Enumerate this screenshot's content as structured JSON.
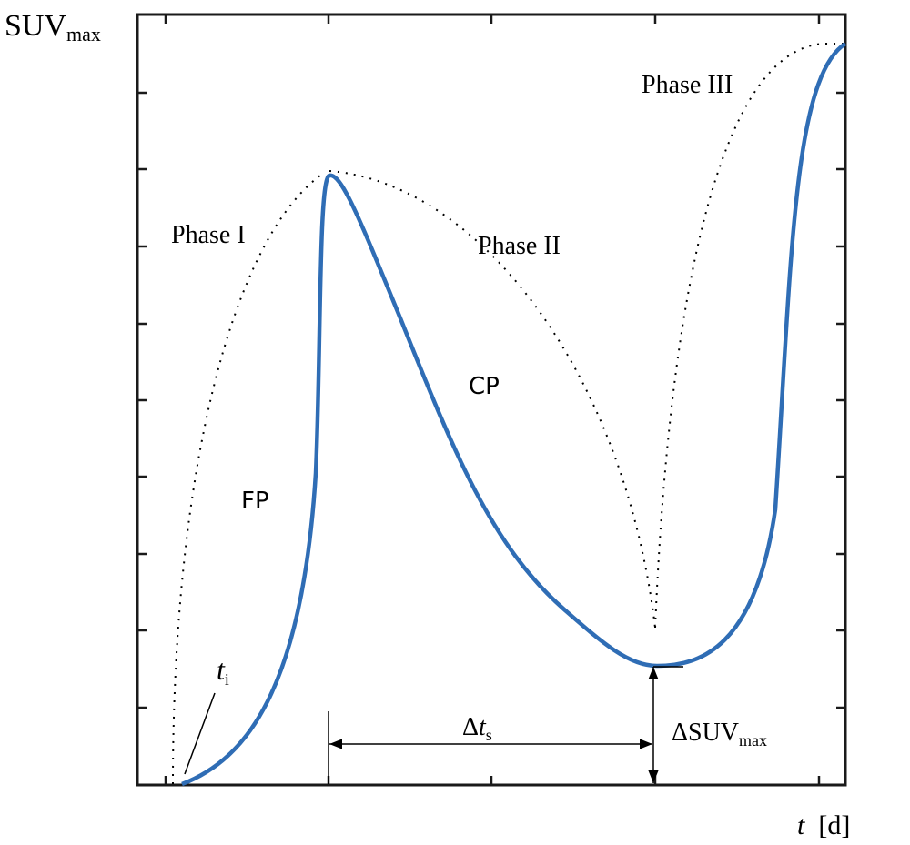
{
  "y_axis": {
    "symbol": "SUV",
    "subscript": "max"
  },
  "x_axis": {
    "symbol": "t",
    "unit": "[d]"
  },
  "phases": {
    "phase1": "Phase I",
    "phase2": "Phase II",
    "phase3": "Phase III"
  },
  "segments": {
    "fp": "FP",
    "cp": "CP"
  },
  "annotations": {
    "t_i": {
      "symbol": "t",
      "subscript": "i"
    },
    "delta_t": {
      "delta": "Δ",
      "symbol": "t",
      "subscript": "s"
    },
    "delta_suv": {
      "delta": "Δ",
      "symbol": "SUV",
      "subscript": "max"
    }
  },
  "colors": {
    "curve": "#2f6db5",
    "axis": "#1a1a1a",
    "envelope": "#000000"
  }
}
